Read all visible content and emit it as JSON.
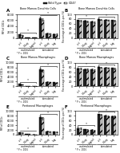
{
  "chart_data": [
    {
      "type": "bar",
      "panel_label": "A",
      "title": "Bone Marrow Dendritic Cells",
      "y_label": "MFI of CD11c",
      "categories": [
        "ctrl",
        "0.1ug",
        "1ug/ml",
        "ctrl",
        "0.1ug",
        "1ug"
      ],
      "series": [
        {
          "name": "Wild Type",
          "color": "#222222",
          "values": [
            1200,
            250,
            150,
            6800,
            1600,
            1400
          ],
          "errors": [
            150,
            50,
            30,
            500,
            200,
            180
          ]
        },
        {
          "name": "CD47",
          "color": "#cccccc",
          "values": [
            900,
            200,
            120,
            6200,
            1500,
            1300
          ],
          "errors": [
            120,
            40,
            25,
            450,
            180,
            160
          ]
        }
      ],
      "ylim": [
        0,
        8000
      ],
      "yticks": [
        0,
        2000,
        4000,
        6000,
        8000
      ],
      "groups": [
        {
          "label": "unstimulated",
          "mark": "*"
        },
        {
          "label": "stimulated",
          "mark": "*"
        }
      ],
      "note": "* P < .0001",
      "legend": "upper center"
    },
    {
      "type": "bar",
      "panel_label": "B",
      "title": "Bone Marrow Dendritic Cells",
      "y_label": "Percentage of CD11c-pos (%)",
      "categories": [
        "ctrl",
        "0.1ug",
        "1ug/ml",
        "ctrl",
        "0.1ug",
        "1ug"
      ],
      "series": [
        {
          "name": "Wild Type",
          "color": "#222222",
          "values": [
            75,
            72,
            70,
            80,
            77,
            75
          ],
          "errors": [
            3,
            3,
            3,
            2,
            2,
            2
          ]
        },
        {
          "name": "CD47",
          "color": "#cccccc",
          "values": [
            72,
            69,
            67,
            78,
            75,
            73
          ],
          "errors": [
            3,
            3,
            3,
            2,
            2,
            2
          ]
        }
      ],
      "ylim": [
        0,
        100
      ],
      "yticks": [
        0,
        20,
        40,
        60,
        80,
        100
      ],
      "groups": [
        {
          "label": "unstimulated",
          "mark": "*"
        },
        {
          "label": "stimulated",
          "mark": "*"
        }
      ],
      "note": "* P < .0001"
    },
    {
      "type": "bar",
      "panel_label": "C",
      "title": "Bone Marrow Macrophages",
      "y_label": "MFI of CD11c",
      "categories": [
        "ctrl",
        "0.1ug",
        "1ug/ml",
        "ctrl",
        "0.1ug",
        "1ug"
      ],
      "series": [
        {
          "name": "Wild Type",
          "color": "#222222",
          "values": [
            1100,
            230,
            140,
            7200,
            1900,
            1700
          ],
          "errors": [
            130,
            45,
            28,
            600,
            220,
            200
          ]
        },
        {
          "name": "CD47",
          "color": "#cccccc",
          "values": [
            850,
            190,
            110,
            6800,
            1700,
            1500
          ],
          "errors": [
            110,
            38,
            22,
            550,
            200,
            180
          ]
        }
      ],
      "ylim": [
        0,
        10000
      ],
      "yticks": [
        0,
        2000,
        4000,
        6000,
        8000,
        10000
      ],
      "groups": [
        {
          "label": "unstimulated",
          "mark": "*"
        },
        {
          "label": "stimulated",
          "mark": "*"
        }
      ],
      "note": "* P < .0001"
    },
    {
      "type": "bar",
      "panel_label": "D",
      "title": "Bone Marrow Macrophages",
      "y_label": "Percentage of CD11c-pos (%)",
      "categories": [
        "ctrl",
        "0.1ug",
        "1ug/ml",
        "ctrl",
        "0.1ug",
        "1ug"
      ],
      "series": [
        {
          "name": "Wild Type",
          "color": "#222222",
          "values": [
            76,
            73,
            71,
            82,
            79,
            77
          ],
          "errors": [
            3,
            3,
            3,
            2,
            2,
            2
          ]
        },
        {
          "name": "CD47",
          "color": "#cccccc",
          "values": [
            74,
            71,
            69,
            80,
            77,
            75
          ],
          "errors": [
            3,
            3,
            3,
            2,
            2,
            2
          ]
        }
      ],
      "ylim": [
        0,
        100
      ],
      "yticks": [
        0,
        20,
        40,
        60,
        80,
        100
      ],
      "groups": [
        {
          "label": "unstimulated",
          "mark": "*"
        },
        {
          "label": "stimulated",
          "mark": "*"
        }
      ],
      "note": "* P < .0001"
    },
    {
      "type": "bar",
      "panel_label": "E",
      "title": "Peritoneal Macrophages",
      "y_label": "MFI of CD11c",
      "categories": [
        "ctrl",
        "0.1ug",
        "1ug/ml",
        "ctrl",
        "0.1ug",
        "1ug"
      ],
      "series": [
        {
          "name": "Wild Type",
          "color": "#222222",
          "values": [
            1000,
            200,
            130,
            7500,
            1400,
            1300
          ],
          "errors": [
            120,
            40,
            25,
            550,
            180,
            160
          ]
        },
        {
          "name": "CD47",
          "color": "#cccccc",
          "values": [
            780,
            170,
            105,
            7000,
            1250,
            1150
          ],
          "errors": [
            100,
            35,
            20,
            500,
            160,
            140
          ]
        }
      ],
      "ylim": [
        0,
        10000
      ],
      "yticks": [
        0,
        2000,
        4000,
        6000,
        8000,
        10000
      ],
      "groups": [
        {
          "label": "unstimulated",
          "mark": "*"
        },
        {
          "label": "stimulated",
          "mark": "*"
        }
      ],
      "note": "* P < .0001"
    },
    {
      "type": "bar",
      "panel_label": "F",
      "title": "Peritoneal Macrophages",
      "y_label": "Percentage of CD11c-pos (%)",
      "categories": [
        "ctrl",
        "0.1ug",
        "1ug/ml",
        "ctrl",
        "0.1ug",
        "1ug"
      ],
      "series": [
        {
          "name": "Wild Type",
          "color": "#222222",
          "values": [
            28,
            22,
            20,
            86,
            80,
            78
          ],
          "errors": [
            4,
            3,
            3,
            3,
            3,
            3
          ]
        },
        {
          "name": "CD47",
          "color": "#cccccc",
          "values": [
            26,
            20,
            18,
            84,
            78,
            76
          ],
          "errors": [
            4,
            3,
            3,
            3,
            3,
            3
          ]
        }
      ],
      "ylim": [
        0,
        100
      ],
      "yticks": [
        0,
        20,
        40,
        60,
        80,
        100
      ],
      "groups": [
        {
          "label": "unstimulated",
          "mark": "*"
        },
        {
          "label": "stimulated",
          "mark": "*"
        }
      ],
      "note": "* P < .0001"
    }
  ]
}
